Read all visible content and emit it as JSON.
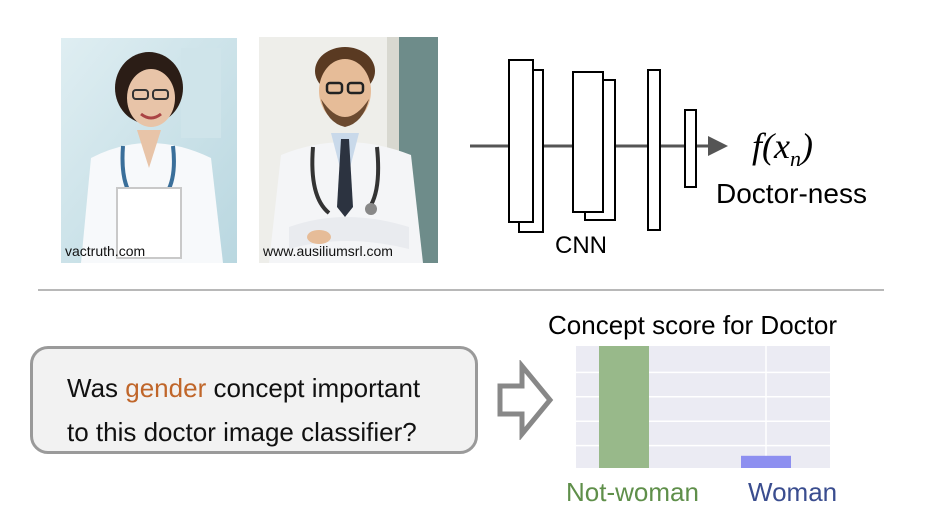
{
  "images": [
    {
      "credit": "vactruth.com"
    },
    {
      "credit": "www.ausiliumsrl.com"
    }
  ],
  "network": {
    "label": "CNN",
    "output_symbol": "f",
    "output_arg": "x",
    "output_sub": "n",
    "output_label": "Doctor-ness"
  },
  "question": {
    "line1_pre": "Was ",
    "line1_highlight": "gender",
    "line1_post": " concept important",
    "line2": "to this doctor image classifier?",
    "highlight_color": "#c0662a"
  },
  "chart_data": {
    "type": "bar",
    "title": "Concept score for Doctor",
    "categories": [
      "Not-woman",
      "Woman"
    ],
    "values": [
      1.0,
      0.1
    ],
    "colors": [
      "#98b98a",
      "#8d8ff0"
    ],
    "label_colors": [
      "#5f8f4a",
      "#3a4d8f"
    ],
    "ylim": [
      0,
      1.0
    ],
    "grid": true,
    "xlabel": "",
    "ylabel": ""
  }
}
